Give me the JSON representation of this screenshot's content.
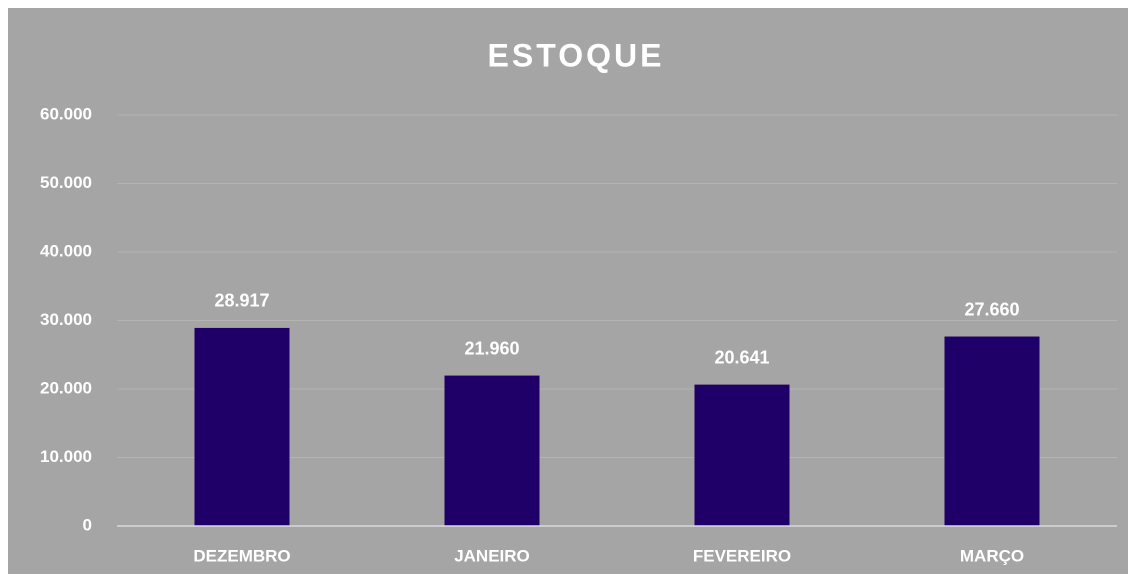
{
  "chart_data": {
    "type": "bar",
    "title": "ESTOQUE",
    "categories": [
      "DEZEMBRO",
      "JANEIRO",
      "FEVEREIRO",
      "MARÇO"
    ],
    "values": [
      28917,
      21960,
      20641,
      27660
    ],
    "value_labels": [
      "28.917",
      "21.960",
      "20.641",
      "27.660"
    ],
    "color": "#1f0068",
    "ylim": [
      0,
      60000
    ],
    "yticks": [
      0,
      {
        "value": 10000,
        "label": "10.000"
      },
      {
        "value": 20000,
        "label": "20.000"
      },
      {
        "value": 30000,
        "label": "30.000"
      },
      {
        "value": 40000,
        "label": "40.000"
      },
      {
        "value": 50000,
        "label": "50.000"
      },
      {
        "value": 60000,
        "label": "60.000"
      }
    ],
    "grid": true
  }
}
